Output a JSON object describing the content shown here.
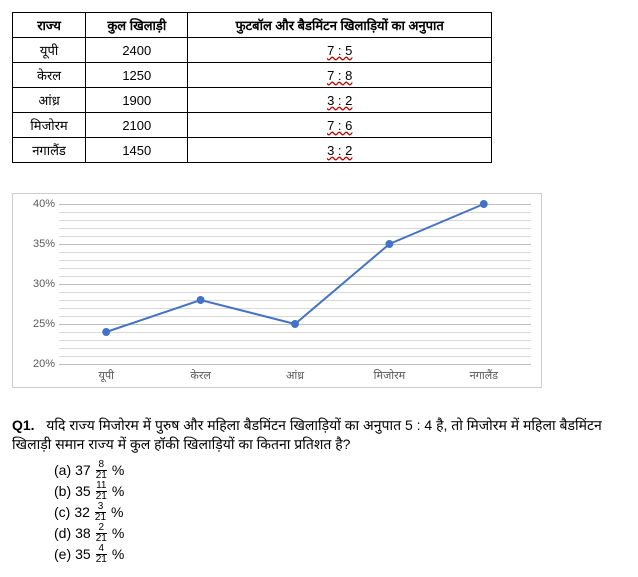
{
  "table": {
    "headers": [
      "राज्य",
      "कुल खिलाड़ी",
      "फुटबॉल और बैडमिंटन खिलाड़ियों का अनुपात"
    ],
    "rows": [
      {
        "state": "यूपी",
        "total": "2400",
        "ratio": "7 : 5"
      },
      {
        "state": "केरल",
        "total": "1250",
        "ratio": "7 : 8"
      },
      {
        "state": "आंध्र",
        "total": "1900",
        "ratio": "3 : 2"
      },
      {
        "state": "मिजोरम",
        "total": "2100",
        "ratio": "7 : 6"
      },
      {
        "state": "नगालैंड",
        "total": "1450",
        "ratio": "3 : 2"
      }
    ]
  },
  "chart": {
    "type": "line",
    "ymin": 20,
    "ymax": 40,
    "yticks": [
      20,
      25,
      30,
      35,
      40
    ],
    "ytick_labels": [
      "20%",
      "25%",
      "30%",
      "35%",
      "40%"
    ],
    "categories": [
      "यूपी",
      "केरल",
      "आंध्र",
      "मिजोरम",
      "नगालैंड"
    ],
    "values": [
      24,
      28,
      25,
      35,
      40
    ],
    "line_color": "#4472c4",
    "marker_color": "#4472c4",
    "grid_heavy_color": "#bfbfbf",
    "grid_light_color": "#d9d9d9"
  },
  "question": {
    "label": "Q1.",
    "text": "यदि राज्य मिजोरम में पुरुष और महिला बैडमिंटन खिलाड़ियों का अनुपात 5 : 4 है, तो मिजोरम में महिला बैडमिंटन खिलाड़ी समान राज्य में कुल हॉकी खिलाड़ियों का कितना प्रतिशत है?",
    "options": [
      {
        "letter": "(a)",
        "whole": "37",
        "num": "8",
        "den": "21",
        "tail": "%"
      },
      {
        "letter": "(b)",
        "whole": "35",
        "num": "11",
        "den": "21",
        "tail": "%"
      },
      {
        "letter": "(c)",
        "whole": "32",
        "num": "3",
        "den": "21",
        "tail": "%"
      },
      {
        "letter": "(d)",
        "whole": "38",
        "num": "2",
        "den": "21",
        "tail": "%"
      },
      {
        "letter": "(e)",
        "whole": "35",
        "num": "4",
        "den": "21",
        "tail": "%"
      }
    ]
  }
}
